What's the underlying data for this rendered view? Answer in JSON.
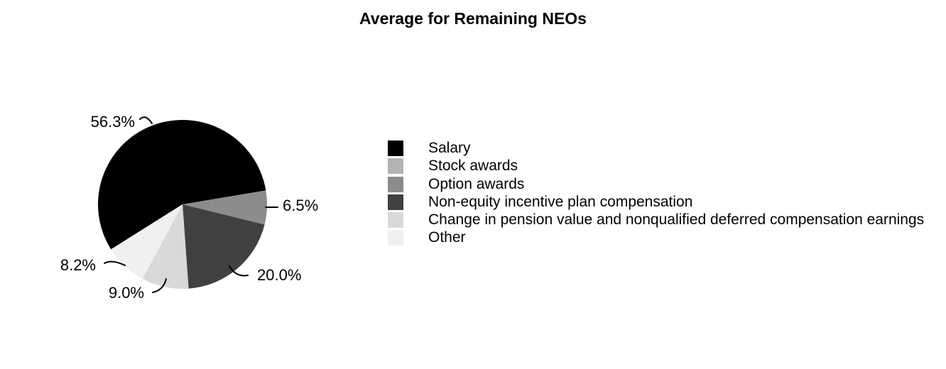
{
  "chart_data": {
    "type": "pie",
    "title": "Average for Remaining NEOs",
    "units": "percent",
    "direction": "clockwise",
    "start_angle_deg": 212.2,
    "legend_position": "right",
    "background_color": "#ffffff",
    "slices": [
      {
        "label": "Salary",
        "value": 56.3,
        "pct_label": "56.3%",
        "color": "#000000"
      },
      {
        "label": "Stock awards",
        "value": 0.0,
        "pct_label": "",
        "color": "#b3b3b3"
      },
      {
        "label": "Option awards",
        "value": 6.5,
        "pct_label": "6.5%",
        "color": "#8c8c8c"
      },
      {
        "label": "Non-equity incentive plan compensation",
        "value": 20.0,
        "pct_label": "20.0%",
        "color": "#404040"
      },
      {
        "label": "Change in pension value and nonqualified deferred compensation earnings",
        "value": 9.0,
        "pct_label": "9.0%",
        "color": "#d9d9d9"
      },
      {
        "label": "Other",
        "value": 8.2,
        "pct_label": "8.2%",
        "color": "#f0f0f0"
      }
    ]
  }
}
